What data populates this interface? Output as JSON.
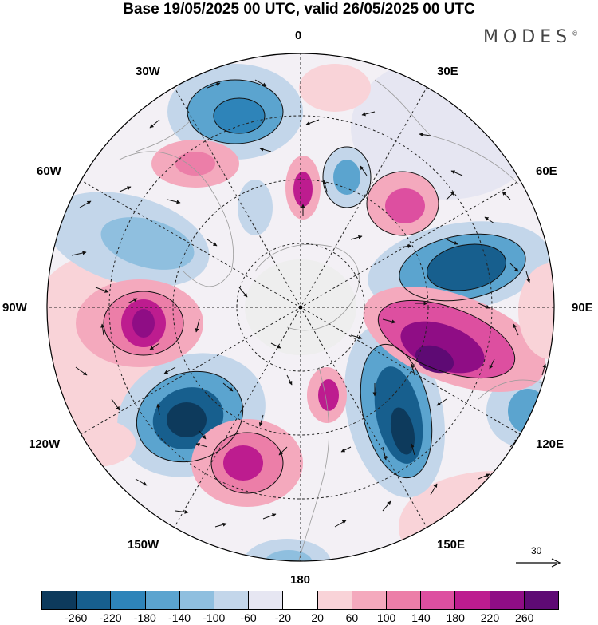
{
  "title": "Base 19/05/2025 00 UTC, valid 26/05/2025 00 UTC",
  "brand": "MODES",
  "brand_mark": "©",
  "longitude_labels": {
    "top": "0",
    "top_right": "30E",
    "right_upper": "60E",
    "right": "90E",
    "right_lower": "120E",
    "bottom_right": "150E",
    "bottom": "180",
    "bottom_left": "150W",
    "left_lower": "120W",
    "left": "90W",
    "left_upper": "60W",
    "top_left": "30W"
  },
  "vector_reference": {
    "value": "30",
    "icon": "arrow-right-icon"
  },
  "colorbar": {
    "colors": [
      "#0d3a5c",
      "#175f8e",
      "#2e84b9",
      "#5ba4cf",
      "#8fbfdf",
      "#c3d6ea",
      "#e6e6f2",
      "#ffffff",
      "#f9d3d8",
      "#f4a9bd",
      "#ec7ea8",
      "#dd4fa0",
      "#bd1c8f",
      "#8f0d85",
      "#5e0a74"
    ],
    "tick_labels": [
      "-260",
      "-220",
      "-180",
      "-140",
      "-100",
      "-60",
      "-20",
      "20",
      "60",
      "100",
      "140",
      "180",
      "220",
      "260"
    ]
  }
}
